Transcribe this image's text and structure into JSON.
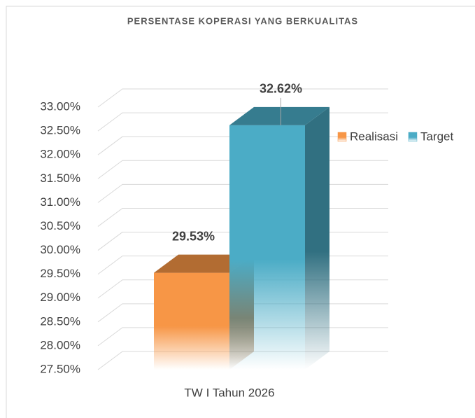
{
  "chart_data": {
    "type": "bar3d",
    "title": "PERSENTASE KOPERASI YANG BERKUALITAS",
    "categories": [
      "TW I Tahun 2026"
    ],
    "series": [
      {
        "name": "Realisasi",
        "color": "#f79646",
        "values": [
          29.53
        ],
        "value_labels": [
          "29.53%"
        ]
      },
      {
        "name": "Target",
        "color": "#4bacc6",
        "values": [
          32.62
        ],
        "value_labels": [
          "32.62%"
        ]
      }
    ],
    "ylim": [
      27.5,
      33
    ],
    "yticks": [
      {
        "value": 27.5,
        "label": "27.50%"
      },
      {
        "value": 28,
        "label": "28.00%"
      },
      {
        "value": 28.5,
        "label": "28.50%"
      },
      {
        "value": 29,
        "label": "29.00%"
      },
      {
        "value": 29.5,
        "label": "29.50%"
      },
      {
        "value": 30,
        "label": "30.00%"
      },
      {
        "value": 30.5,
        "label": "30.50%"
      },
      {
        "value": 31,
        "label": "31.00%"
      },
      {
        "value": 31.5,
        "label": "31.50%"
      },
      {
        "value": 32,
        "label": "32.00%"
      },
      {
        "value": 32.5,
        "label": "32.50%"
      },
      {
        "value": 33,
        "label": "33.00%"
      }
    ],
    "grid": true,
    "legend": "right"
  }
}
